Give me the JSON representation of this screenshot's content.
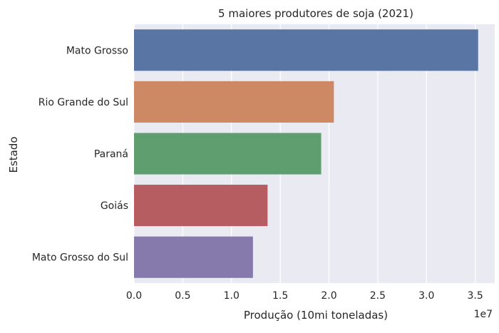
{
  "chart_data": {
    "type": "bar",
    "orientation": "horizontal",
    "title": "5 maiores produtores de soja (2021)",
    "xlabel": "Produção (10mi toneladas)",
    "ylabel": "Estado",
    "x_offset_label": "1e7",
    "xlim": [
      0,
      3.7
    ],
    "x_ticks": [
      "0.0",
      "0.5",
      "1.0",
      "1.5",
      "2.0",
      "2.5",
      "3.0",
      "3.5"
    ],
    "categories": [
      "Mato Grosso",
      "Rio Grande do Sul",
      "Paraná",
      "Goiás",
      "Mato Grosso do Sul"
    ],
    "values": [
      3.53,
      2.05,
      1.92,
      1.37,
      1.22
    ],
    "colors": [
      "#5875a4",
      "#cc8963",
      "#5f9e6e",
      "#b55d60",
      "#857aab"
    ],
    "grid": true,
    "background_color": "#eaeaf2"
  }
}
